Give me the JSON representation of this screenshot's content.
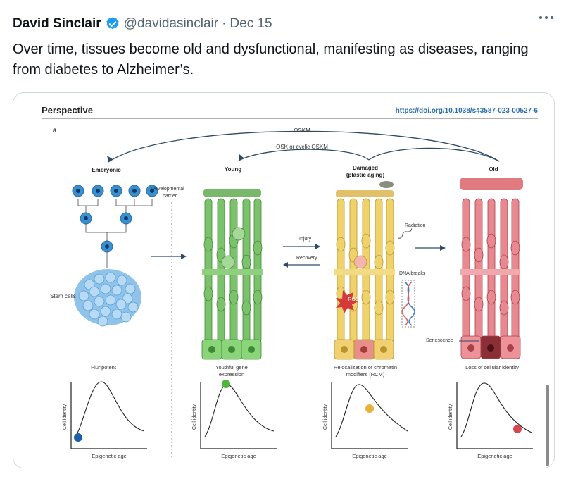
{
  "tweet": {
    "author_name": "David Sinclair",
    "handle": "@davidasinclair",
    "separator": "·",
    "date": "Dec 15",
    "text": "Over time, tissues become old and dysfunctional, manifesting as diseases, ranging from diabetes to Alzheimer’s."
  },
  "figure": {
    "section": "Perspective",
    "doi": "https://doi.org/10.1038/s43587-023-00527-6",
    "panel": "a",
    "arrow_top": "OSKM",
    "arrow_mid": "OSK or cyclic OSKM",
    "stages": {
      "embryonic": "Embryonic",
      "young": "Young",
      "damaged_1": "Damaged",
      "damaged_2": "(plastic aging)",
      "old": "Old"
    },
    "developmental_barrier_1": "Developmental",
    "developmental_barrier_2": "barrier",
    "stem_cells": "Stem cells",
    "injury": "Injury",
    "recovery": "Recovery",
    "radiation": "Radiation",
    "dna_breaks": "DNA breaks",
    "ros": "ROS",
    "senescence": "Senescence",
    "captions": {
      "c1": "Pluripotent",
      "c2a": "Youthful gene",
      "c2b": "expression",
      "c3a": "Relocalization of chromatin",
      "c3b": "modifiers (RCM)",
      "c4": "Loss of cellular identity"
    },
    "axis_y": "Cell identity",
    "axis_x": "Epigenetic age",
    "colors": {
      "young": "#5aa84d",
      "damaged": "#e8c14f",
      "old": "#e0787d",
      "stem": "#3a8fd0"
    }
  }
}
